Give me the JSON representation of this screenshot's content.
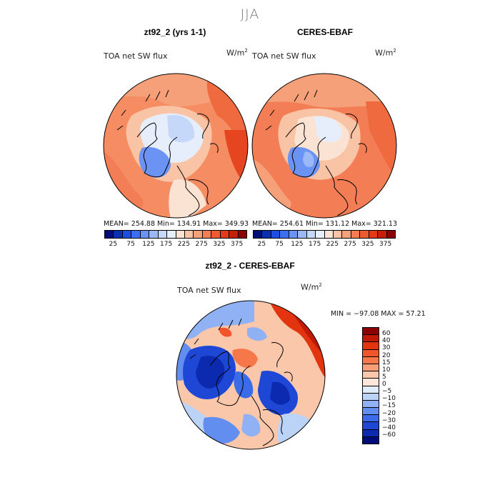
{
  "season": "JJA",
  "panels": [
    {
      "title": "zt92_2 (yrs 1-1)",
      "subtitle": "TOA net SW flux",
      "unit": "W/m",
      "unit_exp": "2",
      "stats": "MEAN= 254.88   Min= 134.91   Max= 349.93"
    },
    {
      "title": "CERES-EBAF",
      "subtitle": "TOA net SW flux",
      "unit": "W/m",
      "unit_exp": "2",
      "stats": "MEAN= 254.61   Min= 131.12   Max= 321.13"
    }
  ],
  "diff_panel": {
    "title": "zt92_2 - CERES-EBAF",
    "subtitle": "TOA net SW flux",
    "unit": "W/m",
    "unit_exp": "2",
    "stats": "MIN = −97.08  MAX =  57.21"
  },
  "colorbar_top": {
    "ticks": [
      "25",
      "75",
      "125",
      "175",
      "225",
      "275",
      "325",
      "375"
    ],
    "colors": [
      "#000e7a",
      "#0a2fb3",
      "#1c4fe0",
      "#3b6ff0",
      "#6a93f4",
      "#9bb8f7",
      "#c6d8fa",
      "#e6eefb",
      "#fbe3d4",
      "#f9c3a5",
      "#f6a07a",
      "#f37d54",
      "#ef5a33",
      "#e53a18",
      "#c81e06",
      "#8b0000"
    ]
  },
  "colorbar_diff": {
    "ticks": [
      "60",
      "40",
      "30",
      "20",
      "15",
      "10",
      "5",
      "0",
      "−5",
      "−10",
      "−15",
      "−20",
      "−30",
      "−40",
      "−60"
    ],
    "colors": [
      "#8b0000",
      "#c01a04",
      "#e2340f",
      "#f1552b",
      "#f6774a",
      "#f89f78",
      "#fac7ab",
      "#fde7da",
      "#e1ecfb",
      "#bcd3f8",
      "#90b2f4",
      "#628ef0",
      "#3a6be8",
      "#1f47d6",
      "#0b2ab0",
      "#000c7a"
    ]
  }
}
